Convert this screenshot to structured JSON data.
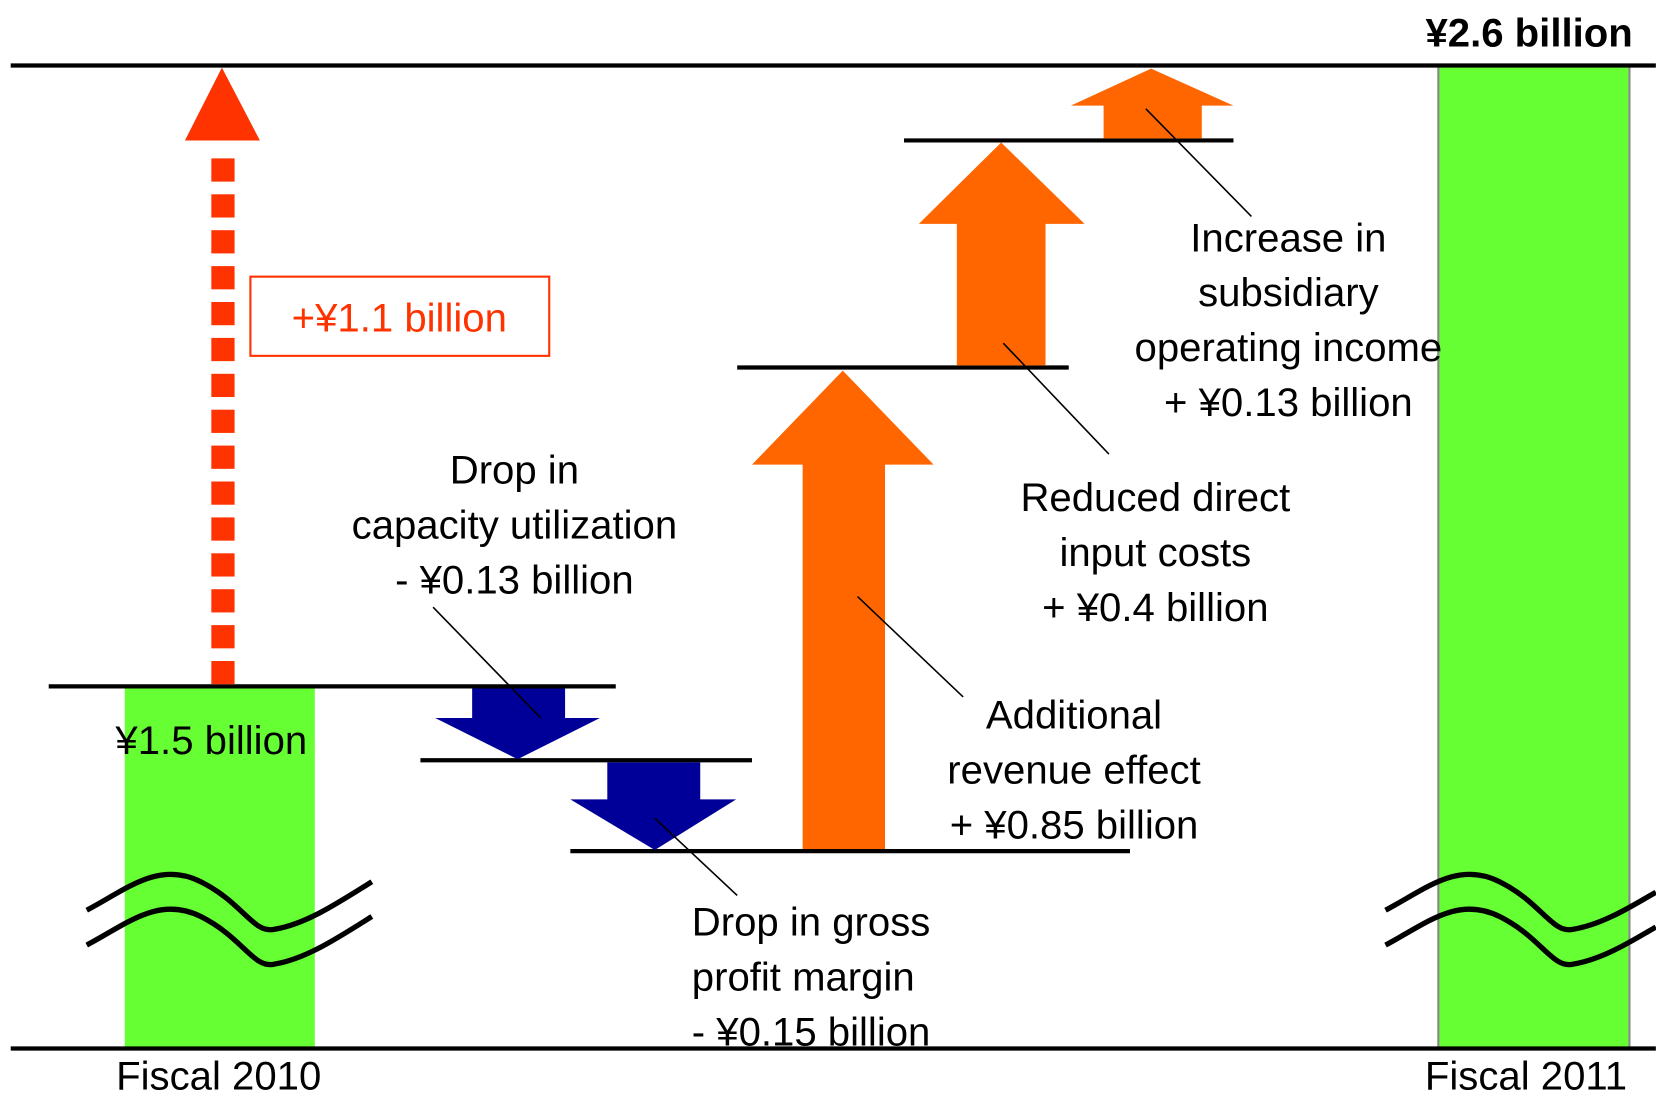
{
  "start": {
    "label": "Fiscal 2010",
    "value_label": "¥1.5 billion"
  },
  "end": {
    "label": "Fiscal 2011",
    "value_label": "¥2.6 billion"
  },
  "total_change": "+¥1.1 billion",
  "steps": [
    {
      "lines": [
        "Drop in",
        "capacity utilization",
        "- ¥0.13 billion"
      ]
    },
    {
      "lines": [
        "Drop in gross",
        "profit margin",
        "- ¥0.15 billion"
      ]
    },
    {
      "lines": [
        "Additional",
        "revenue effect",
        "+ ¥0.85 billion"
      ]
    },
    {
      "lines": [
        "Reduced direct",
        "input costs",
        "+ ¥0.4 billion"
      ]
    },
    {
      "lines": [
        "Increase in",
        "subsidiary",
        "operating income",
        "+ ¥0.13 billion"
      ]
    }
  ]
}
